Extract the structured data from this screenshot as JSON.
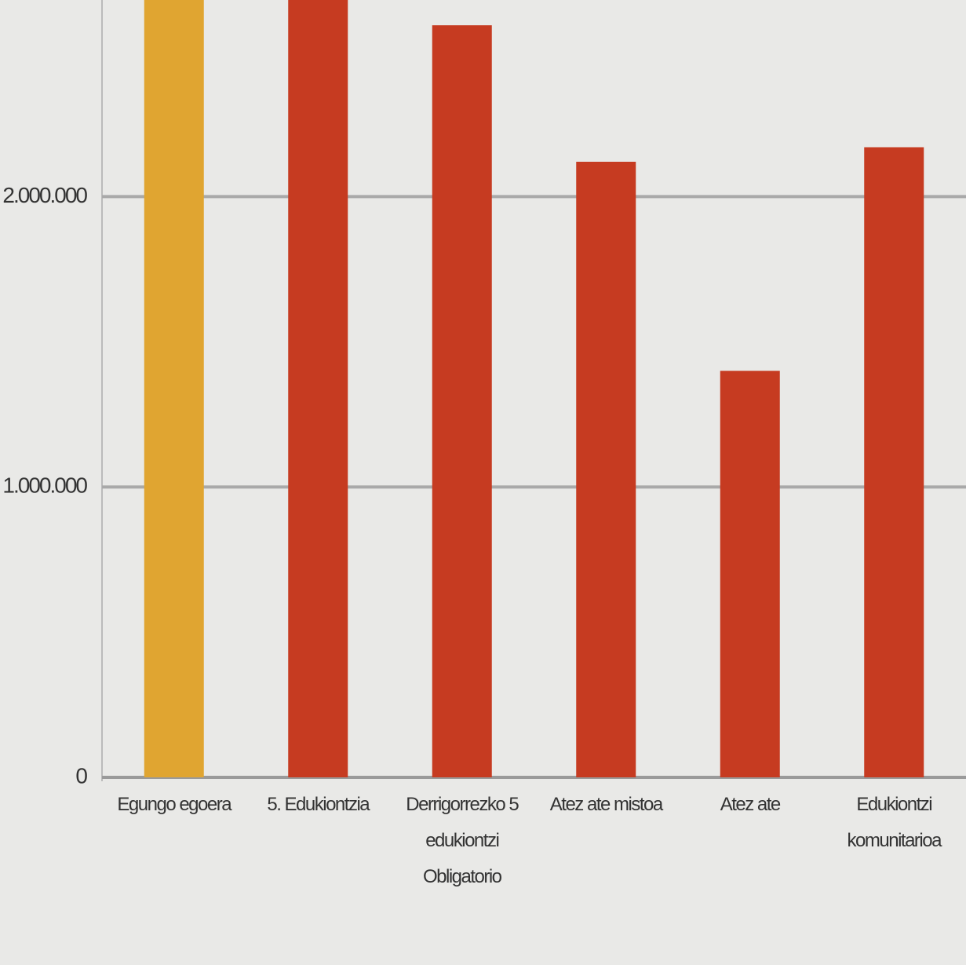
{
  "chart_data": {
    "type": "bar",
    "categories": [
      "Egungo egoera",
      "5. Edukiontzia",
      "Derrigorrezko 5 edukiontzi Obligatorio",
      "Atez ate mistoa",
      "Atez ate",
      "Edukiontzi komunitarioa"
    ],
    "values": [
      2750000,
      2700000,
      2590000,
      2120000,
      1400000,
      2170000
    ],
    "colors": [
      "#e0a531",
      "#c63b21",
      "#c63b21",
      "#c63b21",
      "#c63b21",
      "#c63b21"
    ],
    "ylim": [
      0,
      2650000
    ],
    "yticks": [
      0,
      {
        "value": 1000000,
        "label": "1.000.000"
      },
      {
        "value": 2000000,
        "label": "2.000.000"
      }
    ],
    "grid": true
  }
}
